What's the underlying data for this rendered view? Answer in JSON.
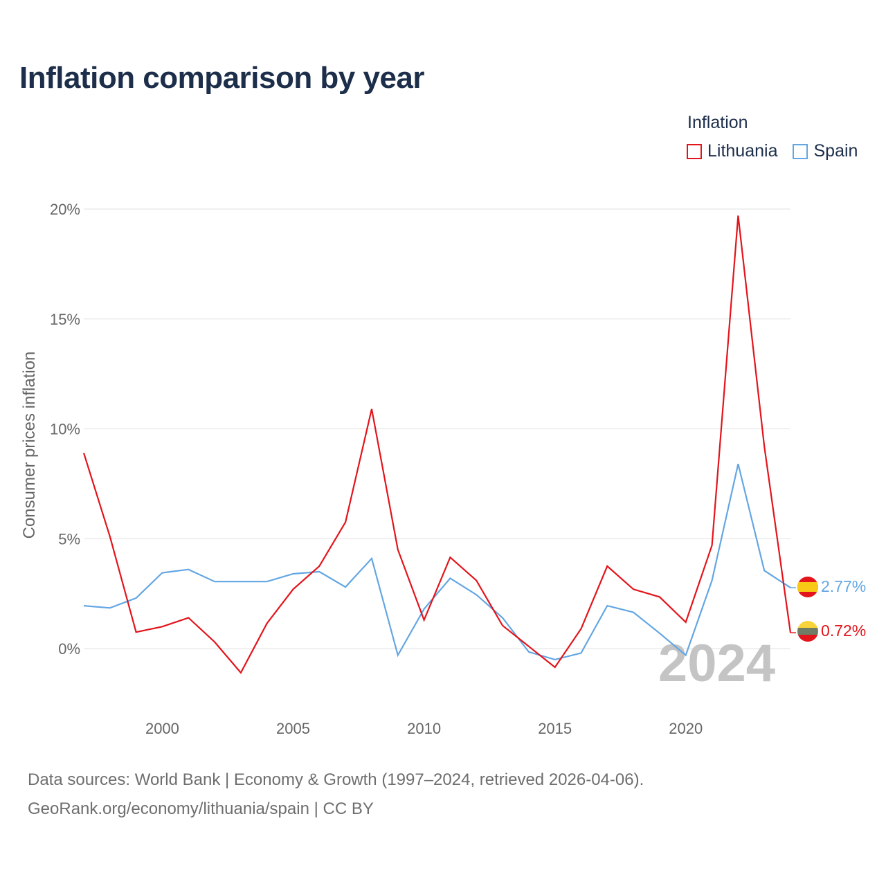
{
  "title": "Inflation comparison by year",
  "legend": {
    "title": "Inflation",
    "items": [
      {
        "name": "Lithuania",
        "color": "#e3141b"
      },
      {
        "name": "Spain",
        "color": "#63a6e3"
      }
    ]
  },
  "source": {
    "line1": "Data sources: World Bank | Economy & Growth (1997–2024, retrieved 2026-04-06).",
    "line2": "GeoRank.org/economy/lithuania/spain | CC BY"
  },
  "chart_data": {
    "type": "line",
    "title": "Inflation comparison by year",
    "xlabel": "",
    "ylabel": "Consumer prices inflation",
    "x": [
      1997,
      1998,
      1999,
      2000,
      2001,
      2002,
      2003,
      2004,
      2005,
      2006,
      2007,
      2008,
      2009,
      2010,
      2011,
      2012,
      2013,
      2014,
      2015,
      2016,
      2017,
      2018,
      2019,
      2020,
      2021,
      2022,
      2023,
      2024
    ],
    "xlim": [
      1997,
      2024
    ],
    "ylim": [
      -2.5,
      21
    ],
    "x_ticks": [
      2000,
      2005,
      2010,
      2015,
      2020
    ],
    "x_tick_labels": [
      "2000",
      "2005",
      "2010",
      "2015",
      "2020"
    ],
    "y_ticks": [
      0,
      5,
      10,
      15,
      20
    ],
    "y_tick_labels": [
      "0%",
      "5%",
      "10%",
      "15%",
      "20%"
    ],
    "grid": true,
    "legend_position": "top-right",
    "year_annotation": "2024",
    "series": [
      {
        "name": "Lithuania",
        "color": "#e3141b",
        "values": [
          8.9,
          5.1,
          0.75,
          1.0,
          1.4,
          0.3,
          -1.1,
          1.15,
          2.7,
          3.75,
          5.75,
          10.9,
          4.5,
          1.3,
          4.15,
          3.1,
          1.05,
          0.1,
          -0.85,
          0.9,
          3.75,
          2.7,
          2.35,
          1.2,
          4.7,
          19.7,
          9.2,
          0.72
        ],
        "end_label": "0.72%"
      },
      {
        "name": "Spain",
        "color": "#63a6e3",
        "values": [
          1.95,
          1.85,
          2.3,
          3.45,
          3.6,
          3.05,
          3.05,
          3.05,
          3.4,
          3.5,
          2.8,
          4.1,
          -0.3,
          1.8,
          3.2,
          2.45,
          1.4,
          -0.15,
          -0.5,
          -0.2,
          1.95,
          1.65,
          0.7,
          -0.3,
          3.1,
          8.4,
          3.55,
          2.77
        ],
        "end_label": "2.77%"
      }
    ]
  }
}
